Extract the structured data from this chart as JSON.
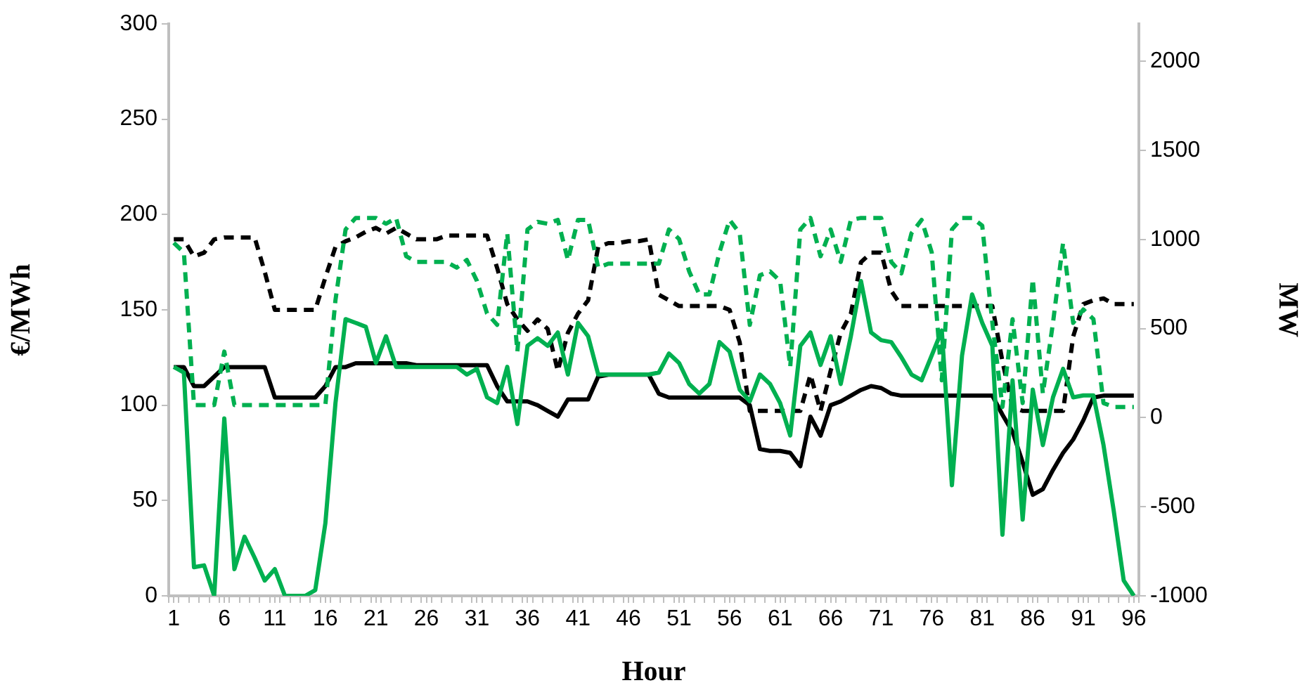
{
  "chart_data": {
    "type": "line",
    "xlabel": "Hour",
    "ylabel": "€/MWh",
    "y2label": "MW",
    "x": [
      1,
      2,
      3,
      4,
      5,
      6,
      7,
      8,
      9,
      10,
      11,
      12,
      13,
      14,
      15,
      16,
      17,
      18,
      19,
      20,
      21,
      22,
      23,
      24,
      25,
      26,
      27,
      28,
      29,
      30,
      31,
      32,
      33,
      34,
      35,
      36,
      37,
      38,
      39,
      40,
      41,
      42,
      43,
      44,
      45,
      46,
      47,
      48,
      49,
      50,
      51,
      52,
      53,
      54,
      55,
      56,
      57,
      58,
      59,
      60,
      61,
      62,
      63,
      64,
      65,
      66,
      67,
      68,
      69,
      70,
      71,
      72,
      73,
      74,
      75,
      76,
      77,
      78,
      79,
      80,
      81,
      82,
      83,
      84,
      85,
      86,
      87,
      88,
      89,
      90,
      91,
      92,
      93,
      94,
      95,
      96
    ],
    "xlim": [
      0.5,
      96.5
    ],
    "xticks": [
      {
        "value": 0.5,
        "label": null
      },
      1,
      {
        "value": 1.5,
        "label": null
      },
      {
        "value": 2.5,
        "label": null
      },
      {
        "value": 3.5,
        "label": null
      },
      {
        "value": 4.5,
        "label": null
      },
      {
        "value": 5.5,
        "label": null
      },
      6,
      {
        "value": 6.5,
        "label": null
      },
      {
        "value": 7.5,
        "label": null
      },
      {
        "value": 8.5,
        "label": null
      },
      {
        "value": 9.5,
        "label": null
      },
      {
        "value": 10.5,
        "label": null
      },
      11,
      {
        "value": 11.5,
        "label": null
      },
      {
        "value": 12.5,
        "label": null
      },
      {
        "value": 13.5,
        "label": null
      },
      {
        "value": 14.5,
        "label": null
      },
      {
        "value": 15.5,
        "label": null
      },
      16,
      {
        "value": 16.5,
        "label": null
      },
      {
        "value": 17.5,
        "label": null
      },
      {
        "value": 18.5,
        "label": null
      },
      {
        "value": 19.5,
        "label": null
      },
      {
        "value": 20.5,
        "label": null
      },
      21,
      {
        "value": 21.5,
        "label": null
      },
      {
        "value": 22.5,
        "label": null
      },
      {
        "value": 23.5,
        "label": null
      },
      {
        "value": 24.5,
        "label": null
      },
      {
        "value": 25.5,
        "label": null
      },
      26,
      {
        "value": 26.5,
        "label": null
      },
      {
        "value": 27.5,
        "label": null
      },
      {
        "value": 28.5,
        "label": null
      },
      {
        "value": 29.5,
        "label": null
      },
      {
        "value": 30.5,
        "label": null
      },
      31,
      {
        "value": 31.5,
        "label": null
      },
      {
        "value": 32.5,
        "label": null
      },
      {
        "value": 33.5,
        "label": null
      },
      {
        "value": 34.5,
        "label": null
      },
      {
        "value": 35.5,
        "label": null
      },
      36,
      {
        "value": 36.5,
        "label": null
      },
      {
        "value": 37.5,
        "label": null
      },
      {
        "value": 38.5,
        "label": null
      },
      {
        "value": 39.5,
        "label": null
      },
      {
        "value": 40.5,
        "label": null
      },
      41,
      {
        "value": 41.5,
        "label": null
      },
      {
        "value": 42.5,
        "label": null
      },
      {
        "value": 43.5,
        "label": null
      },
      {
        "value": 44.5,
        "label": null
      },
      {
        "value": 45.5,
        "label": null
      },
      46,
      {
        "value": 46.5,
        "label": null
      },
      {
        "value": 47.5,
        "label": null
      },
      {
        "value": 48.5,
        "label": null
      },
      {
        "value": 49.5,
        "label": null
      },
      {
        "value": 50.5,
        "label": null
      },
      51,
      {
        "value": 51.5,
        "label": null
      },
      {
        "value": 52.5,
        "label": null
      },
      {
        "value": 53.5,
        "label": null
      },
      {
        "value": 54.5,
        "label": null
      },
      {
        "value": 55.5,
        "label": null
      },
      56,
      {
        "value": 56.5,
        "label": null
      },
      {
        "value": 57.5,
        "label": null
      },
      {
        "value": 58.5,
        "label": null
      },
      {
        "value": 59.5,
        "label": null
      },
      {
        "value": 60.5,
        "label": null
      },
      61,
      {
        "value": 61.5,
        "label": null
      },
      {
        "value": 62.5,
        "label": null
      },
      {
        "value": 63.5,
        "label": null
      },
      {
        "value": 64.5,
        "label": null
      },
      {
        "value": 65.5,
        "label": null
      },
      66,
      {
        "value": 66.5,
        "label": null
      },
      {
        "value": 67.5,
        "label": null
      },
      {
        "value": 68.5,
        "label": null
      },
      {
        "value": 69.5,
        "label": null
      },
      {
        "value": 70.5,
        "label": null
      },
      71,
      {
        "value": 71.5,
        "label": null
      },
      {
        "value": 72.5,
        "label": null
      },
      {
        "value": 73.5,
        "label": null
      },
      {
        "value": 74.5,
        "label": null
      },
      {
        "value": 75.5,
        "label": null
      },
      76,
      {
        "value": 76.5,
        "label": null
      },
      {
        "value": 77.5,
        "label": null
      },
      {
        "value": 78.5,
        "label": null
      },
      {
        "value": 79.5,
        "label": null
      },
      {
        "value": 80.5,
        "label": null
      },
      81,
      {
        "value": 81.5,
        "label": null
      },
      {
        "value": 82.5,
        "label": null
      },
      {
        "value": 83.5,
        "label": null
      },
      {
        "value": 84.5,
        "label": null
      },
      {
        "value": 85.5,
        "label": null
      },
      86,
      {
        "value": 86.5,
        "label": null
      },
      {
        "value": 87.5,
        "label": null
      },
      {
        "value": 88.5,
        "label": null
      },
      {
        "value": 89.5,
        "label": null
      },
      {
        "value": 90.5,
        "label": null
      },
      91,
      {
        "value": 91.5,
        "label": null
      },
      {
        "value": 92.5,
        "label": null
      },
      {
        "value": 93.5,
        "label": null
      },
      {
        "value": 94.5,
        "label": null
      },
      {
        "value": 95.5,
        "label": null
      },
      96,
      {
        "value": 96.5,
        "label": null
      }
    ],
    "ylim": [
      0,
      300
    ],
    "yticks": [
      0,
      50,
      100,
      150,
      200,
      250,
      300
    ],
    "y2lim": [
      -1000,
      2210
    ],
    "y2ticks": [
      -1000,
      -500,
      0,
      500,
      1000,
      1500,
      2000
    ],
    "grid": false,
    "legend": false,
    "marker": "none",
    "series": [
      {
        "color": "#000000",
        "line_style": "solid",
        "values": [
          120,
          120,
          110,
          110,
          115,
          120,
          120,
          120,
          120,
          120,
          104,
          104,
          104,
          104,
          104,
          110,
          120,
          120,
          122,
          122,
          122,
          122,
          122,
          122,
          121,
          121,
          121,
          121,
          121,
          121,
          121,
          121,
          110,
          102,
          102,
          102,
          100,
          97,
          94,
          103,
          103,
          103,
          115,
          116,
          116,
          116,
          116,
          116,
          106,
          104,
          104,
          104,
          104,
          104,
          104,
          104,
          104,
          100,
          77,
          76,
          76,
          75,
          68,
          94,
          84,
          100,
          102,
          105,
          108,
          110,
          109,
          106,
          105,
          105,
          105,
          105,
          105,
          105,
          105,
          105,
          105,
          105,
          95,
          86,
          70,
          53,
          56,
          66,
          75,
          82,
          92,
          104,
          105,
          105,
          105,
          105
        ]
      },
      {
        "color": "#000000",
        "line_style": "dashed",
        "values": [
          187,
          187,
          178,
          180,
          187,
          188,
          188,
          188,
          188,
          170,
          150,
          150,
          150,
          150,
          150,
          167,
          183,
          186,
          188,
          191,
          193,
          190,
          193,
          190,
          187,
          187,
          187,
          189,
          189,
          189,
          189,
          189,
          172,
          153,
          145,
          139,
          145,
          140,
          118,
          138,
          148,
          155,
          183,
          185,
          185,
          186,
          186,
          187,
          158,
          155,
          152,
          152,
          152,
          152,
          152,
          150,
          133,
          97,
          97,
          97,
          97,
          97,
          97,
          116,
          97,
          118,
          138,
          148,
          175,
          180,
          180,
          160,
          152,
          152,
          152,
          152,
          152,
          152,
          152,
          152,
          152,
          152,
          123,
          99,
          97,
          97,
          97,
          97,
          97,
          136,
          153,
          155,
          156,
          153,
          153,
          153
        ]
      },
      {
        "color": "#00b050",
        "line_style": "solid",
        "axis": "y2",
        "values": [
          285,
          253,
          -839,
          -829,
          -1000,
          -4,
          -850,
          -668,
          -786,
          -914,
          -850,
          -1000,
          -1000,
          -1000,
          -968,
          -593,
          82,
          553,
          532,
          510,
          307,
          457,
          285,
          285,
          285,
          285,
          285,
          285,
          285,
          242,
          274,
          114,
          82,
          285,
          -36,
          403,
          446,
          403,
          478,
          242,
          532,
          457,
          242,
          242,
          242,
          242,
          242,
          242,
          253,
          360,
          307,
          189,
          135,
          189,
          424,
          371,
          157,
          92,
          242,
          189,
          82,
          -100,
          403,
          478,
          296,
          457,
          189,
          457,
          767,
          478,
          435,
          424,
          339,
          242,
          210,
          349,
          489,
          -379,
          349,
          692,
          532,
          403,
          -657,
          210,
          -572,
          157,
          -154,
          114,
          274,
          114,
          125,
          125,
          -154,
          -518,
          -914,
          -1000
        ]
      },
      {
        "color": "#00b050",
        "line_style": "dashed",
        "axis": "y2",
        "values": [
          981,
          928,
          71,
          71,
          71,
          371,
          71,
          71,
          71,
          71,
          71,
          71,
          71,
          71,
          71,
          71,
          660,
          1056,
          1121,
          1121,
          1121,
          1088,
          1121,
          906,
          874,
          874,
          874,
          874,
          842,
          885,
          767,
          585,
          521,
          1035,
          371,
          1056,
          1099,
          1088,
          1110,
          885,
          1110,
          1110,
          842,
          864,
          864,
          864,
          864,
          864,
          864,
          1056,
          1003,
          821,
          692,
          692,
          928,
          1110,
          1035,
          521,
          799,
          821,
          767,
          285,
          1056,
          1121,
          906,
          1056,
          874,
          1110,
          1121,
          1121,
          1121,
          874,
          810,
          1035,
          1110,
          928,
          210,
          1056,
          1121,
          1121,
          1078,
          532,
          60,
          553,
          82,
          778,
          135,
          532,
          981,
          532,
          607,
          553,
          82,
          60,
          60,
          60
        ]
      }
    ]
  }
}
